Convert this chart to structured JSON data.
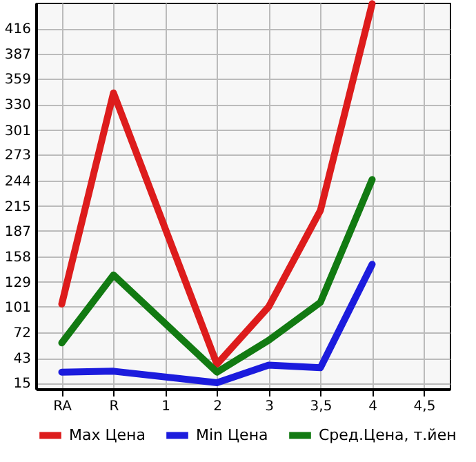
{
  "chart_data": {
    "type": "line",
    "categories": [
      "RA",
      "R",
      "1",
      "2",
      "3",
      "3,5",
      "4",
      "4,5"
    ],
    "series": [
      {
        "name": "Max Цена",
        "color": "#dd1c1c",
        "values": [
          104,
          343,
          null,
          36,
          101,
          210,
          444,
          null
        ]
      },
      {
        "name": "Min Цена",
        "color": "#1c1cdd",
        "values": [
          27,
          28,
          null,
          15,
          35,
          32,
          149,
          null
        ]
      },
      {
        "name": "Сред.Цена, т.йен",
        "color": "#127a12",
        "values": [
          60,
          137,
          null,
          27,
          63,
          106,
          245,
          null
        ]
      }
    ],
    "ylim": [
      8,
      445
    ],
    "yticks": [
      15,
      43,
      72,
      101,
      129,
      158,
      187,
      215,
      244,
      273,
      301,
      330,
      359,
      387,
      416
    ],
    "grid": true,
    "legend": "bottom",
    "marker": "none",
    "line_style": "solid"
  }
}
